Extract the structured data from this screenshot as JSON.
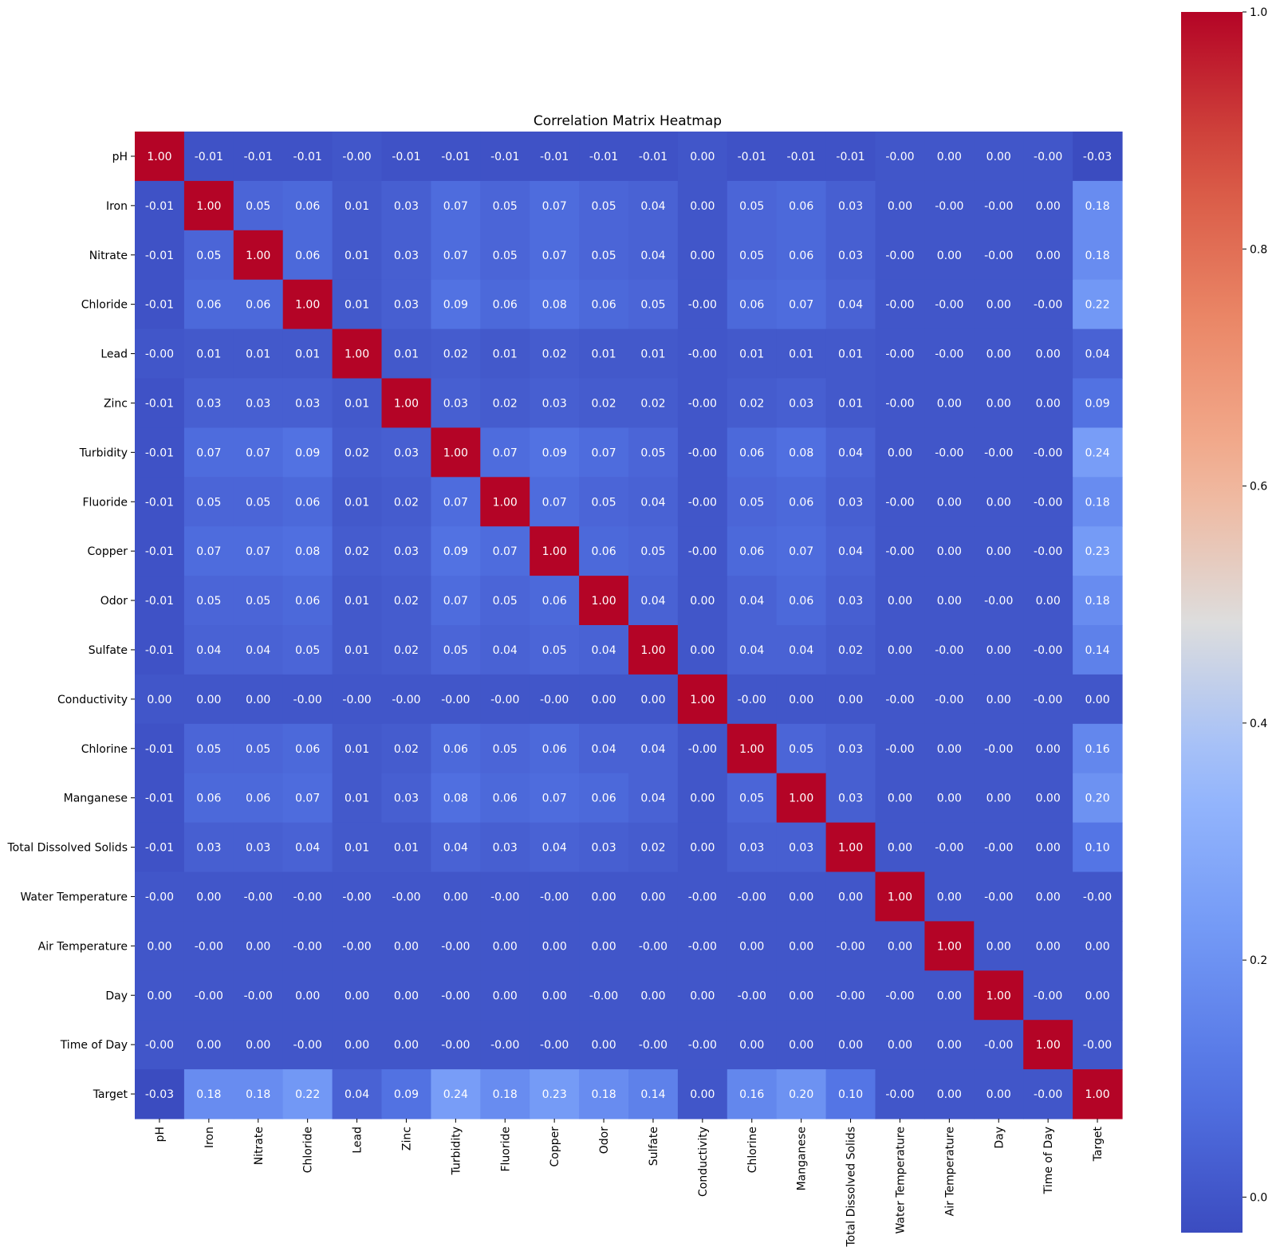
{
  "chart_data": {
    "type": "heatmap",
    "title": "Correlation Matrix Heatmap",
    "xlabel": "",
    "ylabel": "",
    "labels": [
      "pH",
      "Iron",
      "Nitrate",
      "Chloride",
      "Lead",
      "Zinc",
      "Turbidity",
      "Fluoride",
      "Copper",
      "Odor",
      "Sulfate",
      "Conductivity",
      "Chlorine",
      "Manganese",
      "Total Dissolved Solids",
      "Water Temperature",
      "Air Temperature",
      "Day",
      "Time of Day",
      "Target"
    ],
    "cell_labels": [
      [
        "1.00",
        "-0.01",
        "-0.01",
        "-0.01",
        "-0.00",
        "-0.01",
        "-0.01",
        "-0.01",
        "-0.01",
        "-0.01",
        "-0.01",
        "0.00",
        "-0.01",
        "-0.01",
        "-0.01",
        "-0.00",
        "0.00",
        "0.00",
        "-0.00",
        "-0.03"
      ],
      [
        "-0.01",
        "1.00",
        "0.05",
        "0.06",
        "0.01",
        "0.03",
        "0.07",
        "0.05",
        "0.07",
        "0.05",
        "0.04",
        "0.00",
        "0.05",
        "0.06",
        "0.03",
        "0.00",
        "-0.00",
        "-0.00",
        "0.00",
        "0.18"
      ],
      [
        "-0.01",
        "0.05",
        "1.00",
        "0.06",
        "0.01",
        "0.03",
        "0.07",
        "0.05",
        "0.07",
        "0.05",
        "0.04",
        "0.00",
        "0.05",
        "0.06",
        "0.03",
        "-0.00",
        "0.00",
        "-0.00",
        "0.00",
        "0.18"
      ],
      [
        "-0.01",
        "0.06",
        "0.06",
        "1.00",
        "0.01",
        "0.03",
        "0.09",
        "0.06",
        "0.08",
        "0.06",
        "0.05",
        "-0.00",
        "0.06",
        "0.07",
        "0.04",
        "-0.00",
        "-0.00",
        "0.00",
        "-0.00",
        "0.22"
      ],
      [
        "-0.00",
        "0.01",
        "0.01",
        "0.01",
        "1.00",
        "0.01",
        "0.02",
        "0.01",
        "0.02",
        "0.01",
        "0.01",
        "-0.00",
        "0.01",
        "0.01",
        "0.01",
        "-0.00",
        "-0.00",
        "0.00",
        "0.00",
        "0.04"
      ],
      [
        "-0.01",
        "0.03",
        "0.03",
        "0.03",
        "0.01",
        "1.00",
        "0.03",
        "0.02",
        "0.03",
        "0.02",
        "0.02",
        "-0.00",
        "0.02",
        "0.03",
        "0.01",
        "-0.00",
        "0.00",
        "0.00",
        "0.00",
        "0.09"
      ],
      [
        "-0.01",
        "0.07",
        "0.07",
        "0.09",
        "0.02",
        "0.03",
        "1.00",
        "0.07",
        "0.09",
        "0.07",
        "0.05",
        "-0.00",
        "0.06",
        "0.08",
        "0.04",
        "0.00",
        "-0.00",
        "-0.00",
        "-0.00",
        "0.24"
      ],
      [
        "-0.01",
        "0.05",
        "0.05",
        "0.06",
        "0.01",
        "0.02",
        "0.07",
        "1.00",
        "0.07",
        "0.05",
        "0.04",
        "-0.00",
        "0.05",
        "0.06",
        "0.03",
        "-0.00",
        "0.00",
        "0.00",
        "-0.00",
        "0.18"
      ],
      [
        "-0.01",
        "0.07",
        "0.07",
        "0.08",
        "0.02",
        "0.03",
        "0.09",
        "0.07",
        "1.00",
        "0.06",
        "0.05",
        "-0.00",
        "0.06",
        "0.07",
        "0.04",
        "-0.00",
        "0.00",
        "0.00",
        "-0.00",
        "0.23"
      ],
      [
        "-0.01",
        "0.05",
        "0.05",
        "0.06",
        "0.01",
        "0.02",
        "0.07",
        "0.05",
        "0.06",
        "1.00",
        "0.04",
        "0.00",
        "0.04",
        "0.06",
        "0.03",
        "0.00",
        "0.00",
        "-0.00",
        "0.00",
        "0.18"
      ],
      [
        "-0.01",
        "0.04",
        "0.04",
        "0.05",
        "0.01",
        "0.02",
        "0.05",
        "0.04",
        "0.05",
        "0.04",
        "1.00",
        "0.00",
        "0.04",
        "0.04",
        "0.02",
        "0.00",
        "-0.00",
        "0.00",
        "-0.00",
        "0.14"
      ],
      [
        "0.00",
        "0.00",
        "0.00",
        "-0.00",
        "-0.00",
        "-0.00",
        "-0.00",
        "-0.00",
        "-0.00",
        "0.00",
        "0.00",
        "1.00",
        "-0.00",
        "0.00",
        "0.00",
        "-0.00",
        "-0.00",
        "0.00",
        "-0.00",
        "0.00"
      ],
      [
        "-0.01",
        "0.05",
        "0.05",
        "0.06",
        "0.01",
        "0.02",
        "0.06",
        "0.05",
        "0.06",
        "0.04",
        "0.04",
        "-0.00",
        "1.00",
        "0.05",
        "0.03",
        "-0.00",
        "0.00",
        "-0.00",
        "0.00",
        "0.16"
      ],
      [
        "-0.01",
        "0.06",
        "0.06",
        "0.07",
        "0.01",
        "0.03",
        "0.08",
        "0.06",
        "0.07",
        "0.06",
        "0.04",
        "0.00",
        "0.05",
        "1.00",
        "0.03",
        "0.00",
        "0.00",
        "0.00",
        "0.00",
        "0.20"
      ],
      [
        "-0.01",
        "0.03",
        "0.03",
        "0.04",
        "0.01",
        "0.01",
        "0.04",
        "0.03",
        "0.04",
        "0.03",
        "0.02",
        "0.00",
        "0.03",
        "0.03",
        "1.00",
        "0.00",
        "-0.00",
        "-0.00",
        "0.00",
        "0.10"
      ],
      [
        "-0.00",
        "0.00",
        "-0.00",
        "-0.00",
        "-0.00",
        "-0.00",
        "0.00",
        "-0.00",
        "-0.00",
        "0.00",
        "0.00",
        "-0.00",
        "-0.00",
        "0.00",
        "0.00",
        "1.00",
        "0.00",
        "-0.00",
        "0.00",
        "-0.00"
      ],
      [
        "0.00",
        "-0.00",
        "0.00",
        "-0.00",
        "-0.00",
        "0.00",
        "-0.00",
        "0.00",
        "0.00",
        "0.00",
        "-0.00",
        "-0.00",
        "0.00",
        "0.00",
        "-0.00",
        "0.00",
        "1.00",
        "0.00",
        "0.00",
        "0.00"
      ],
      [
        "0.00",
        "-0.00",
        "-0.00",
        "0.00",
        "0.00",
        "0.00",
        "-0.00",
        "0.00",
        "0.00",
        "-0.00",
        "0.00",
        "0.00",
        "-0.00",
        "0.00",
        "-0.00",
        "-0.00",
        "0.00",
        "1.00",
        "-0.00",
        "0.00"
      ],
      [
        "-0.00",
        "0.00",
        "0.00",
        "-0.00",
        "0.00",
        "0.00",
        "-0.00",
        "-0.00",
        "-0.00",
        "0.00",
        "-0.00",
        "-0.00",
        "0.00",
        "0.00",
        "0.00",
        "0.00",
        "0.00",
        "-0.00",
        "1.00",
        "-0.00"
      ],
      [
        "-0.03",
        "0.18",
        "0.18",
        "0.22",
        "0.04",
        "0.09",
        "0.24",
        "0.18",
        "0.23",
        "0.18",
        "0.14",
        "0.00",
        "0.16",
        "0.20",
        "0.10",
        "-0.00",
        "0.00",
        "0.00",
        "-0.00",
        "1.00"
      ]
    ],
    "colorbar": {
      "vmin": -0.03,
      "vmax": 1.0,
      "ticks": [
        0.0,
        0.2,
        0.4,
        0.6,
        0.8,
        1.0
      ],
      "tick_labels": [
        "0.0",
        "0.2",
        "0.4",
        "0.6",
        "0.8",
        "1.0"
      ],
      "colormap": "coolwarm",
      "low_color": "#3b4cc0",
      "mid_color": "#dddddd",
      "high_color": "#b40426"
    },
    "grid": false,
    "legend": "colorbar-right"
  }
}
